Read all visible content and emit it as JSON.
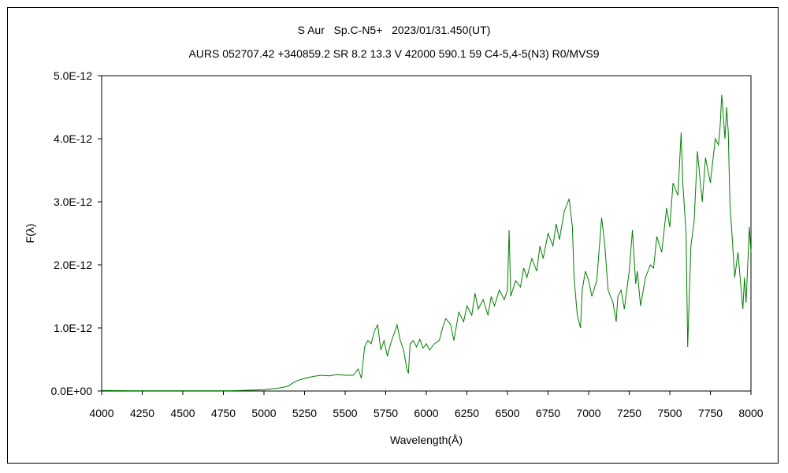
{
  "chart_data": {
    "type": "line",
    "title": "S Aur   Sp.C-N5+   2023/01/31.450(UT)",
    "subtitle": "AURS 052707.42 +340859.2 SR 8.2 13.3 V 42000 590.1 59 C4-5,4-5(N3) R0/MVS9",
    "xlabel": "Wavelength(Å)",
    "ylabel": "F(λ)",
    "xlim": [
      4000,
      8000
    ],
    "ylim": [
      0,
      5e-12
    ],
    "x_ticks": [
      4000,
      4250,
      4500,
      4750,
      5000,
      5250,
      5500,
      5750,
      6000,
      6250,
      6500,
      6750,
      7000,
      7250,
      7500,
      7750,
      8000
    ],
    "x_tick_labels": [
      "4000",
      "4250",
      "4500",
      "4750",
      "5000",
      "5250",
      "5500",
      "5750",
      "6000",
      "6250",
      "6500",
      "6750",
      "7000",
      "7250",
      "7500",
      "7750",
      "8000"
    ],
    "y_ticks": [
      0,
      1e-12,
      2e-12,
      3e-12,
      4e-12,
      5e-12
    ],
    "y_tick_labels": [
      "0.0E+00",
      "1.0E-12",
      "2.0E-12",
      "3.0E-12",
      "4.0E-12",
      "5.0E-12"
    ],
    "grid": false,
    "legend": "none",
    "series": [
      {
        "color": "#008000",
        "x": [
          4000,
          4200,
          4400,
          4600,
          4800,
          5000,
          5100,
          5150,
          5180,
          5200,
          5250,
          5300,
          5350,
          5400,
          5450,
          5500,
          5550,
          5580,
          5600,
          5620,
          5640,
          5660,
          5680,
          5700,
          5720,
          5740,
          5760,
          5780,
          5800,
          5820,
          5840,
          5860,
          5880,
          5890,
          5900,
          5920,
          5940,
          5960,
          5980,
          6000,
          6020,
          6050,
          6080,
          6100,
          6120,
          6150,
          6170,
          6200,
          6230,
          6250,
          6280,
          6300,
          6320,
          6350,
          6380,
          6400,
          6420,
          6450,
          6480,
          6500,
          6510,
          6520,
          6550,
          6580,
          6600,
          6620,
          6650,
          6680,
          6700,
          6720,
          6750,
          6780,
          6800,
          6820,
          6850,
          6880,
          6900,
          6910,
          6930,
          6950,
          6960,
          6980,
          7000,
          7020,
          7050,
          7080,
          7100,
          7120,
          7150,
          7170,
          7180,
          7200,
          7220,
          7250,
          7270,
          7290,
          7300,
          7320,
          7350,
          7380,
          7400,
          7420,
          7450,
          7480,
          7500,
          7520,
          7550,
          7570,
          7580,
          7600,
          7610,
          7620,
          7630,
          7650,
          7670,
          7700,
          7720,
          7750,
          7780,
          7800,
          7810,
          7820,
          7840,
          7850,
          7860,
          7870,
          7880,
          7900,
          7920,
          7940,
          7950,
          7960,
          7970,
          7980,
          7990,
          8000
        ],
        "values": [
          1e-14,
          5e-15,
          5e-15,
          5e-15,
          5e-15,
          2e-14,
          5e-14,
          8e-14,
          1.3e-13,
          1.6e-13,
          2e-13,
          2.3e-13,
          2.5e-13,
          2.4e-13,
          2.6e-13,
          2.5e-13,
          2.5e-13,
          3.5e-13,
          2e-13,
          7e-13,
          8e-13,
          7.5e-13,
          9.5e-13,
          1.05e-12,
          6.5e-13,
          8e-13,
          5.5e-13,
          7.5e-13,
          9e-13,
          1.05e-12,
          8e-13,
          6.5e-13,
          3.5e-13,
          2.8e-13,
          7.5e-13,
          8e-13,
          7e-13,
          8.2e-13,
          6.8e-13,
          7.5e-13,
          6.5e-13,
          7.5e-13,
          8e-13,
          1e-12,
          1.15e-12,
          1.05e-12,
          8e-13,
          1.25e-12,
          1.1e-12,
          1.35e-12,
          1.2e-12,
          1.55e-12,
          1.3e-12,
          1.45e-12,
          1.2e-12,
          1.5e-12,
          1.35e-12,
          1.6e-12,
          1.45e-12,
          1.6e-12,
          2.55e-12,
          1.5e-12,
          1.75e-12,
          1.65e-12,
          1.95e-12,
          1.8e-12,
          2.1e-12,
          1.9e-12,
          2.3e-12,
          2.1e-12,
          2.5e-12,
          2.3e-12,
          2.65e-12,
          2.4e-12,
          2.85e-12,
          3.05e-12,
          2.6e-12,
          1.8e-12,
          1.2e-12,
          1e-12,
          1.6e-12,
          1.9e-12,
          1.75e-12,
          1.5e-12,
          1.75e-12,
          2.75e-12,
          2.3e-12,
          1.6e-12,
          1.4e-12,
          1.1e-12,
          1.5e-12,
          1.6e-12,
          1.3e-12,
          1.9e-12,
          2.55e-12,
          1.7e-12,
          1.9e-12,
          1.35e-12,
          1.8e-12,
          2e-12,
          1.95e-12,
          2.45e-12,
          2.2e-12,
          2.9e-12,
          2.6e-12,
          3.3e-12,
          3.1e-12,
          4.1e-12,
          3.3e-12,
          2.5e-12,
          7e-13,
          1.5e-12,
          2.3e-12,
          2.7e-12,
          3.8e-12,
          3e-12,
          3.7e-12,
          3.3e-12,
          4e-12,
          3.9e-12,
          4.2e-12,
          4.7e-12,
          4e-12,
          4.5e-12,
          4.1e-12,
          3e-12,
          2.6e-12,
          1.8e-12,
          2.2e-12,
          1.6e-12,
          1.3e-12,
          1.8e-12,
          1.4e-12,
          2e-12,
          2.6e-12,
          2.2e-12
        ]
      }
    ]
  }
}
